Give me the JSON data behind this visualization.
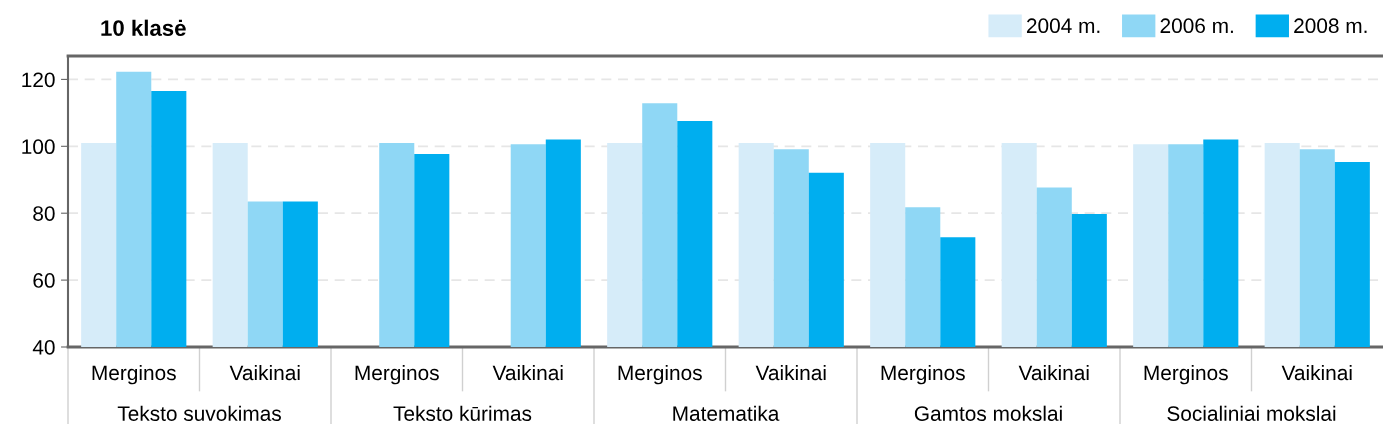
{
  "chart_data": {
    "type": "bar",
    "title": "10 klasė",
    "categories": [
      "Merginos",
      "Vaikinai",
      "Merginos",
      "Vaikinai",
      "Merginos",
      "Vaikinai",
      "Merginos",
      "Vaikinai",
      "Merginos",
      "Vaikinai"
    ],
    "annotations": [
      "Teksto suvokimas",
      "Teksto kūrimas",
      "Matematika",
      "Gamtos mokslai",
      "Socialiniai mokslai"
    ],
    "series": [
      {
        "name": "2004 m.",
        "color": "#d6ecf9",
        "values": [
          101,
          101,
          null,
          null,
          101,
          101,
          101,
          101,
          100.6,
          101
        ]
      },
      {
        "name": "2006 m.",
        "color": "#8fd7f5",
        "values": [
          122.3,
          83.5,
          101,
          100.6,
          112.9,
          99.1,
          81.8,
          87.7,
          100.6,
          99.1
        ]
      },
      {
        "name": "2008 m.",
        "color": "#00aeef",
        "values": [
          116.5,
          83.5,
          97.7,
          102,
          107.6,
          92.1,
          72.8,
          79.8,
          102,
          95.3
        ]
      }
    ],
    "ylim": [
      40,
      127
    ],
    "yticks": [
      40,
      60,
      80,
      100,
      120
    ],
    "grid": "y",
    "legend": "top right"
  }
}
